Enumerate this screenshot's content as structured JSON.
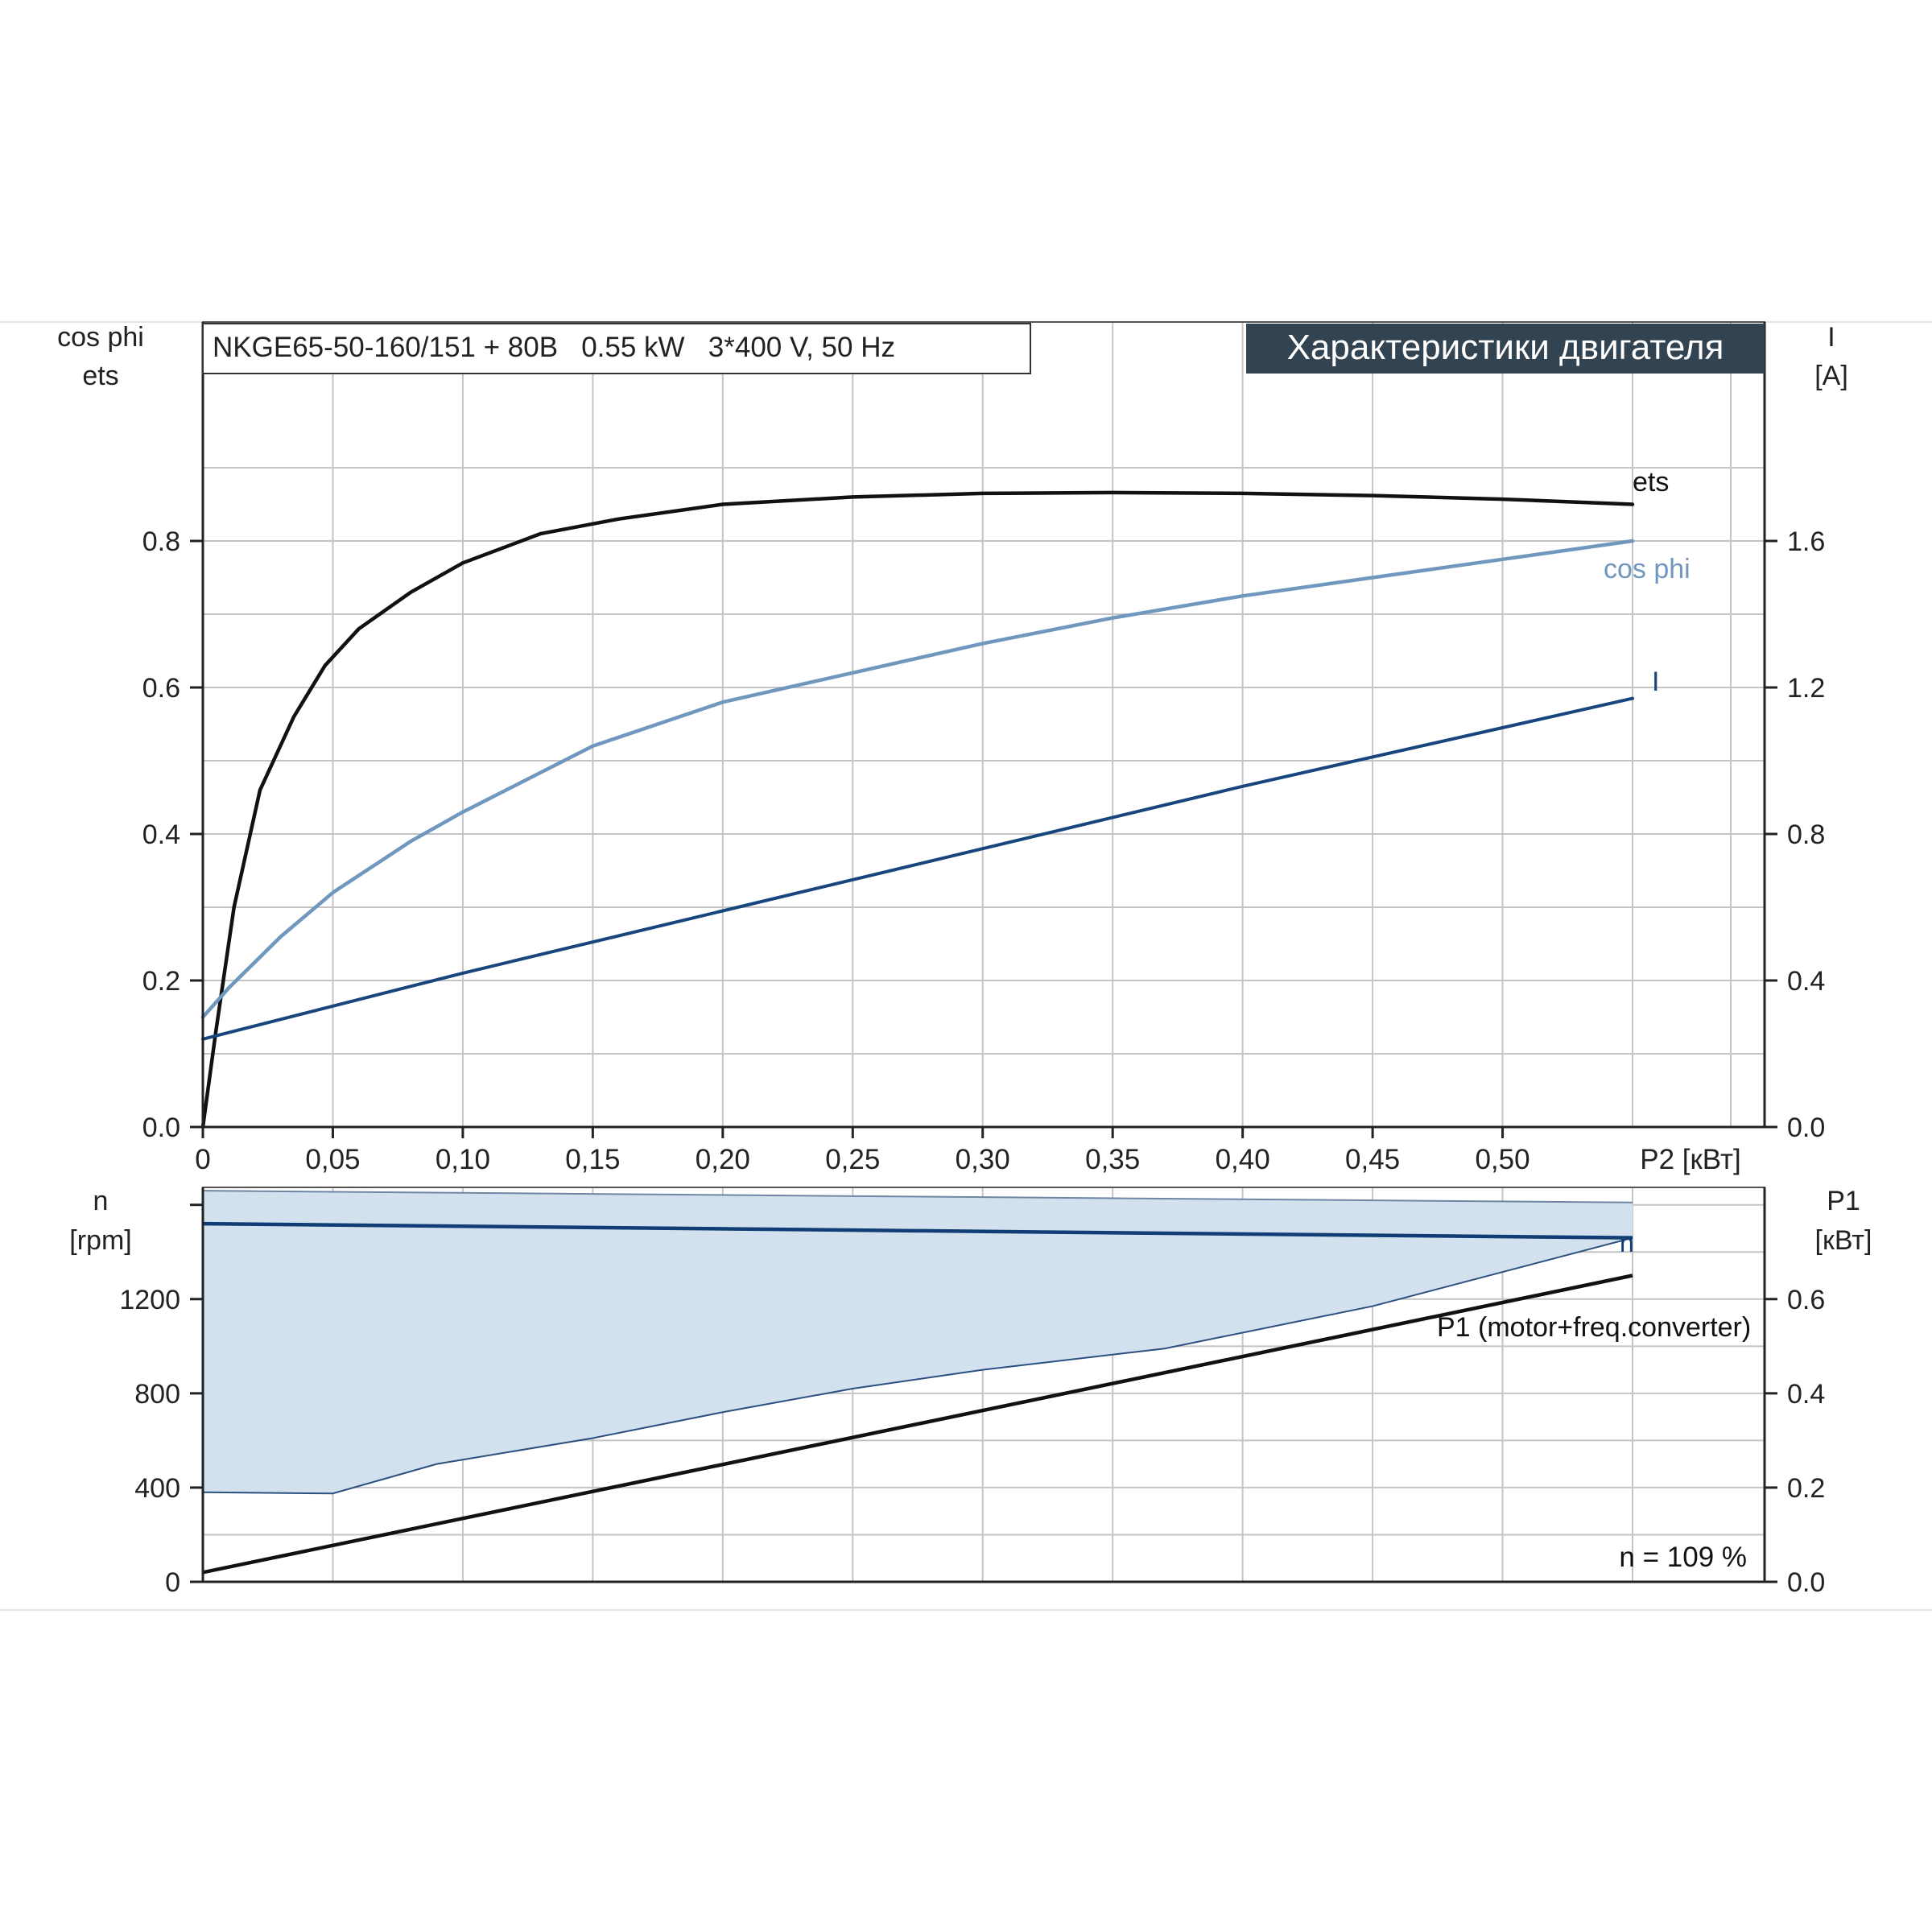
{
  "header": {
    "model_text": "NKGE65-50-160/151 + 80B   0.55 kW   3*400 V, 50 Hz",
    "title_banner": "Характеристики двигателя"
  },
  "colors": {
    "ets": "#111111",
    "cos_phi": "#7097bd",
    "current": "#17457e",
    "speed": "#0f3d74",
    "speed_band_fill": "#d3e1ef",
    "p1": "#111111",
    "grid": "#c4c4c4",
    "banner_bg": "#324352",
    "banner_text": "#ffffff"
  },
  "chart_data": [
    {
      "type": "line",
      "name_hint": "upper panel",
      "x_label": "P2 [кВт]",
      "x_range": [
        0,
        0.55
      ],
      "x_ticks": [
        "0",
        "0,05",
        "0,10",
        "0,15",
        "0,20",
        "0,25",
        "0,30",
        "0,35",
        "0,40",
        "0,45",
        "0,50"
      ],
      "x_tick_values": [
        0,
        0.05,
        0.1,
        0.15,
        0.2,
        0.25,
        0.3,
        0.35,
        0.4,
        0.45,
        0.5
      ],
      "y_left_label": [
        "cos phi",
        "ets"
      ],
      "y_left_range": [
        0,
        1.0
      ],
      "y_left_ticks": [
        "0.0",
        "0.2",
        "0.4",
        "0.6",
        "0.8"
      ],
      "y_left_tick_values": [
        0,
        0.2,
        0.4,
        0.6,
        0.8
      ],
      "y_right_label": [
        "I",
        "[A]"
      ],
      "y_right_range": [
        0,
        2.0
      ],
      "y_right_ticks": [
        "0.0",
        "0.4",
        "0.8",
        "1.2",
        "1.6"
      ],
      "y_right_tick_values": [
        0,
        0.4,
        0.8,
        1.2,
        1.6
      ],
      "grid": true,
      "series": [
        {
          "name": "ets",
          "axis": "left",
          "x": [
            0,
            0.005,
            0.012,
            0.022,
            0.035,
            0.047,
            0.06,
            0.08,
            0.1,
            0.13,
            0.16,
            0.2,
            0.25,
            0.3,
            0.35,
            0.4,
            0.45,
            0.5,
            0.55
          ],
          "y": [
            0.0,
            0.13,
            0.3,
            0.46,
            0.56,
            0.63,
            0.68,
            0.73,
            0.77,
            0.81,
            0.83,
            0.85,
            0.86,
            0.865,
            0.866,
            0.865,
            0.862,
            0.857,
            0.85
          ]
        },
        {
          "name": "cos phi",
          "axis": "left",
          "x": [
            0,
            0.01,
            0.03,
            0.05,
            0.08,
            0.1,
            0.15,
            0.2,
            0.25,
            0.3,
            0.35,
            0.4,
            0.45,
            0.5,
            0.55
          ],
          "y": [
            0.15,
            0.19,
            0.26,
            0.32,
            0.39,
            0.43,
            0.52,
            0.58,
            0.62,
            0.66,
            0.695,
            0.725,
            0.75,
            0.775,
            0.8
          ]
        },
        {
          "name": "I",
          "axis": "right",
          "x": [
            0,
            0.1,
            0.2,
            0.3,
            0.4,
            0.5,
            0.55
          ],
          "y": [
            0.24,
            0.42,
            0.59,
            0.76,
            0.93,
            1.09,
            1.17
          ]
        }
      ]
    },
    {
      "type": "area",
      "name_hint": "lower panel",
      "x_range": [
        0,
        0.55
      ],
      "y_left_label": [
        "n",
        "[rpm]"
      ],
      "y_left_range": [
        0,
        1640
      ],
      "y_left_ticks": [
        "0",
        "400",
        "800",
        "1200"
      ],
      "y_left_tick_values": [
        0,
        400,
        800,
        1200
      ],
      "y_right_label": [
        "P1",
        "[кВт]"
      ],
      "y_right_range": [
        0,
        0.82
      ],
      "y_right_ticks": [
        "0.0",
        "0.2",
        "0.4",
        "0.6"
      ],
      "y_right_tick_values": [
        0,
        0.2,
        0.4,
        0.6
      ],
      "grid": true,
      "annotation": "n = 109 %",
      "series": [
        {
          "name": "n band upper",
          "axis": "left",
          "x": [
            0,
            0.55
          ],
          "y": [
            1660,
            1610
          ]
        },
        {
          "name": "n band lower",
          "axis": "left",
          "x": [
            0,
            0.05,
            0.09,
            0.15,
            0.2,
            0.25,
            0.3,
            0.37,
            0.45,
            0.55
          ],
          "y": [
            380,
            375,
            500,
            610,
            720,
            820,
            900,
            990,
            1170,
            1460
          ]
        },
        {
          "name": "n",
          "axis": "left",
          "x": [
            0,
            0.55
          ],
          "y": [
            1520,
            1460
          ]
        },
        {
          "name": "P1 (motor+freq.converter)",
          "axis": "right",
          "x": [
            0,
            0.55
          ],
          "y": [
            0.02,
            0.65
          ]
        }
      ]
    }
  ]
}
